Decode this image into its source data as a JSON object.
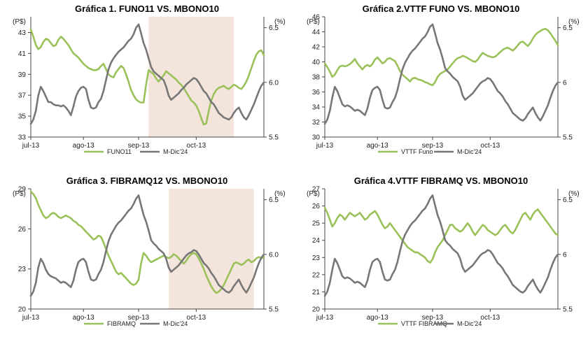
{
  "colors": {
    "primary": "#9BC15A",
    "secondary": "#777777",
    "shade": "#F3E5DC",
    "axis": "#444444"
  },
  "chart_data": [
    {
      "type": "line",
      "title": "Gráfica 1. FUNO11 VS. MBONO10",
      "left_unit": "(P$)",
      "right_unit": "(%)",
      "ylim_left": [
        33,
        44.5
      ],
      "ylim_right": [
        5.5,
        6.6
      ],
      "left_ticks": [
        33,
        35,
        37,
        39,
        41,
        43
      ],
      "right_ticks": [
        "5.5",
        "6.0",
        "6.5"
      ],
      "right_tick_values": [
        5.5,
        6.0,
        6.5
      ],
      "x_ticks": [
        "jul-13",
        "ago-13",
        "sep-13",
        "oct-13"
      ],
      "x_tick_positions": [
        0,
        21,
        43,
        66
      ],
      "n_points": 94,
      "shade_range": [
        47,
        81
      ],
      "series": [
        {
          "name": "FUNO11",
          "axis": "left",
          "values": [
            43.3,
            42.6,
            41.8,
            41.4,
            41.6,
            42.1,
            42.4,
            42.3,
            42.0,
            41.7,
            41.8,
            42.3,
            42.6,
            42.4,
            42.1,
            41.8,
            41.4,
            41.0,
            40.8,
            40.6,
            40.3,
            40.0,
            39.8,
            39.6,
            39.5,
            39.4,
            39.4,
            39.5,
            39.8,
            40.0,
            39.5,
            39.0,
            38.8,
            38.7,
            39.2,
            39.5,
            39.8,
            39.6,
            39.0,
            38.3,
            37.5,
            37.0,
            36.6,
            36.4,
            36.3,
            36.3,
            38.0,
            39.4,
            39.2,
            39.0,
            38.6,
            38.3,
            38.6,
            38.9,
            39.3,
            39.1,
            38.9,
            38.7,
            38.5,
            38.2,
            38.0,
            37.7,
            37.3,
            36.9,
            36.5,
            36.3,
            36.0,
            35.5,
            34.8,
            34.2,
            34.3,
            35.5,
            36.5,
            37.1,
            37.5,
            37.7,
            37.8,
            37.9,
            37.7,
            37.6,
            37.8,
            38.0,
            37.9,
            37.7,
            37.6,
            37.9,
            38.3,
            38.9,
            39.6,
            40.3,
            40.9,
            41.2,
            41.3,
            40.8
          ]
        },
        {
          "name": "M-Dic'24",
          "axis": "right",
          "values": [
            5.62,
            5.66,
            5.74,
            5.88,
            5.96,
            5.92,
            5.87,
            5.82,
            5.82,
            5.8,
            5.79,
            5.79,
            5.78,
            5.79,
            5.77,
            5.74,
            5.7,
            5.78,
            5.87,
            5.92,
            5.95,
            5.96,
            5.94,
            5.84,
            5.77,
            5.76,
            5.77,
            5.82,
            5.85,
            5.92,
            6.02,
            6.12,
            6.18,
            6.22,
            6.25,
            6.28,
            6.3,
            6.32,
            6.35,
            6.38,
            6.4,
            6.44,
            6.5,
            6.53,
            6.45,
            6.36,
            6.3,
            6.22,
            6.14,
            6.1,
            6.08,
            6.06,
            6.04,
            6.02,
            5.96,
            5.88,
            5.84,
            5.86,
            5.88,
            5.9,
            5.93,
            5.95,
            5.98,
            6.0,
            6.02,
            6.04,
            6.03,
            6.0,
            5.96,
            5.92,
            5.9,
            5.86,
            5.82,
            5.8,
            5.76,
            5.72,
            5.7,
            5.68,
            5.67,
            5.66,
            5.68,
            5.72,
            5.75,
            5.77,
            5.72,
            5.68,
            5.66,
            5.7,
            5.75,
            5.8,
            5.86,
            5.92,
            5.97,
            6.0
          ]
        }
      ]
    },
    {
      "type": "line",
      "title": "Gráfica 2.VTTF FUNO VS. MBONO10",
      "left_unit": "(P$)",
      "right_unit": "(%)",
      "ylim_left": [
        30,
        46
      ],
      "ylim_right": [
        5.5,
        6.6
      ],
      "left_ticks": [
        30,
        32,
        34,
        36,
        38,
        40,
        42,
        44,
        46
      ],
      "right_ticks": [
        "5.5",
        "6",
        "6.5"
      ],
      "right_tick_values": [
        5.5,
        6.0,
        6.5
      ],
      "x_ticks": [
        "jul-13",
        "ago-13",
        "sep-13",
        "oct-13"
      ],
      "x_tick_positions": [
        0,
        21,
        43,
        66
      ],
      "n_points": 94,
      "shade_range": null,
      "series": [
        {
          "name": "VTTF Funo",
          "axis": "left",
          "values": [
            39.8,
            39.3,
            38.7,
            38.0,
            38.3,
            38.9,
            39.4,
            39.5,
            39.4,
            39.5,
            39.7,
            40.0,
            40.4,
            39.8,
            39.4,
            39.0,
            39.4,
            39.6,
            39.4,
            39.7,
            40.3,
            40.6,
            40.2,
            39.8,
            40.0,
            40.4,
            40.5,
            40.3,
            40.1,
            39.5,
            38.8,
            38.3,
            38.0,
            37.7,
            37.4,
            37.8,
            37.9,
            37.7,
            37.6,
            37.5,
            37.3,
            37.2,
            37.0,
            36.9,
            37.3,
            38.0,
            38.4,
            38.6,
            38.8,
            39.0,
            39.4,
            39.8,
            40.2,
            40.5,
            40.6,
            40.8,
            40.7,
            40.5,
            40.3,
            40.1,
            40.0,
            40.3,
            40.8,
            41.2,
            41.0,
            40.8,
            40.7,
            40.6,
            40.7,
            41.0,
            41.3,
            41.6,
            41.8,
            41.9,
            41.7,
            41.5,
            41.8,
            42.2,
            42.6,
            42.7,
            42.4,
            42.1,
            42.5,
            43.1,
            43.6,
            43.9,
            44.1,
            44.3,
            44.4,
            44.2,
            43.8,
            43.3,
            42.8,
            42.2
          ]
        },
        {
          "name": "M-Dic'24",
          "axis": "right",
          "values": [
            5.62,
            5.66,
            5.74,
            5.86,
            5.96,
            5.92,
            5.86,
            5.8,
            5.78,
            5.79,
            5.78,
            5.76,
            5.74,
            5.75,
            5.74,
            5.72,
            5.7,
            5.76,
            5.86,
            5.93,
            5.95,
            5.96,
            5.93,
            5.84,
            5.77,
            5.76,
            5.77,
            5.82,
            5.86,
            5.93,
            6.03,
            6.12,
            6.18,
            6.22,
            6.26,
            6.29,
            6.31,
            6.34,
            6.37,
            6.4,
            6.42,
            6.46,
            6.51,
            6.53,
            6.45,
            6.36,
            6.3,
            6.22,
            6.13,
            6.1,
            6.08,
            6.05,
            6.03,
            6.01,
            5.96,
            5.88,
            5.84,
            5.86,
            5.88,
            5.9,
            5.93,
            5.96,
            5.99,
            6.01,
            6.02,
            6.04,
            6.03,
            6.0,
            5.96,
            5.92,
            5.9,
            5.87,
            5.83,
            5.8,
            5.76,
            5.72,
            5.7,
            5.68,
            5.66,
            5.65,
            5.67,
            5.71,
            5.74,
            5.77,
            5.72,
            5.68,
            5.65,
            5.69,
            5.74,
            5.79,
            5.86,
            5.92,
            5.97,
            6.0
          ]
        }
      ]
    },
    {
      "type": "line",
      "title": "Gráfica 3. FIBRAMQ12 VS. MBONO10",
      "left_unit": "(P$)",
      "right_unit": "(%)",
      "ylim_left": [
        20,
        29
      ],
      "ylim_right": [
        5.5,
        6.6
      ],
      "left_ticks": [
        20,
        23,
        26,
        29
      ],
      "right_ticks": [
        "5.5",
        "6.0",
        "6.5"
      ],
      "right_tick_values": [
        5.5,
        6.0,
        6.5
      ],
      "x_ticks": [
        "jul-13",
        "ago-13",
        "sep-13",
        "oct-13"
      ],
      "x_tick_positions": [
        0,
        21,
        43,
        66
      ],
      "n_points": 94,
      "shade_range": [
        55,
        89
      ],
      "series": [
        {
          "name": "FIBRAMQ",
          "axis": "left",
          "values": [
            28.8,
            28.6,
            28.3,
            27.8,
            27.4,
            27.0,
            26.8,
            26.9,
            27.1,
            27.2,
            27.1,
            26.9,
            26.8,
            26.9,
            27.0,
            26.9,
            26.8,
            26.6,
            26.5,
            26.3,
            26.2,
            26.0,
            25.8,
            25.6,
            25.4,
            25.2,
            25.3,
            25.5,
            25.4,
            25.0,
            24.5,
            24.0,
            23.6,
            23.2,
            22.8,
            22.6,
            22.7,
            22.5,
            22.3,
            22.1,
            21.9,
            21.8,
            21.9,
            22.2,
            23.4,
            24.2,
            24.0,
            23.7,
            23.5,
            23.6,
            23.7,
            23.8,
            23.9,
            24.0,
            23.9,
            23.8,
            23.9,
            24.1,
            24.0,
            23.8,
            23.6,
            23.4,
            23.6,
            23.9,
            24.1,
            24.2,
            24.1,
            23.8,
            23.4,
            23.0,
            22.5,
            22.1,
            21.7,
            21.4,
            21.2,
            21.3,
            21.5,
            21.8,
            22.2,
            22.6,
            23.0,
            23.4,
            23.5,
            23.4,
            23.3,
            23.4,
            23.6,
            23.7,
            23.5,
            23.6,
            23.8,
            23.9,
            23.8,
            23.9
          ]
        },
        {
          "name": "M-Dic'24",
          "axis": "right",
          "values": [
            5.62,
            5.66,
            5.74,
            5.88,
            5.96,
            5.92,
            5.86,
            5.82,
            5.8,
            5.79,
            5.78,
            5.76,
            5.74,
            5.75,
            5.74,
            5.72,
            5.7,
            5.76,
            5.86,
            5.93,
            5.95,
            5.96,
            5.93,
            5.84,
            5.77,
            5.76,
            5.77,
            5.82,
            5.86,
            5.93,
            6.03,
            6.12,
            6.18,
            6.22,
            6.26,
            6.29,
            6.31,
            6.34,
            6.37,
            6.4,
            6.42,
            6.46,
            6.51,
            6.54,
            6.45,
            6.36,
            6.3,
            6.22,
            6.13,
            6.1,
            6.08,
            6.05,
            6.03,
            6.01,
            5.96,
            5.88,
            5.84,
            5.86,
            5.88,
            5.9,
            5.93,
            5.96,
            5.99,
            6.01,
            6.02,
            6.04,
            6.03,
            6.0,
            5.96,
            5.92,
            5.9,
            5.87,
            5.83,
            5.8,
            5.76,
            5.72,
            5.7,
            5.68,
            5.66,
            5.65,
            5.67,
            5.71,
            5.74,
            5.77,
            5.72,
            5.68,
            5.65,
            5.69,
            5.74,
            5.79,
            5.86,
            5.92,
            5.97,
            6.0
          ]
        }
      ]
    },
    {
      "type": "line",
      "title": "Gráfica 4.VTTF FIBRAMQ VS. MBONO10",
      "left_unit": "(P$)",
      "right_unit": "(%)",
      "ylim_left": [
        20,
        27
      ],
      "ylim_right": [
        5.5,
        6.6
      ],
      "left_ticks": [
        20,
        21,
        22,
        23,
        24,
        25,
        26,
        27
      ],
      "right_ticks": [
        "5.5",
        "6",
        "6.5"
      ],
      "right_tick_values": [
        5.5,
        6.0,
        6.5
      ],
      "x_ticks": [
        "jul-13",
        "ago-13",
        "sep-13",
        "oct-13"
      ],
      "x_tick_positions": [
        0,
        21,
        43,
        66
      ],
      "n_points": 94,
      "shade_range": null,
      "series": [
        {
          "name": "VTTF FIBRAMQ",
          "axis": "left",
          "values": [
            25.9,
            25.6,
            25.2,
            24.8,
            25.0,
            25.3,
            25.5,
            25.4,
            25.2,
            25.4,
            25.6,
            25.5,
            25.4,
            25.5,
            25.6,
            25.4,
            25.2,
            25.3,
            25.5,
            25.6,
            25.7,
            25.5,
            25.2,
            24.9,
            24.7,
            24.8,
            25.0,
            24.8,
            24.6,
            24.4,
            24.2,
            24.0,
            23.8,
            23.6,
            23.5,
            23.4,
            23.3,
            23.3,
            23.2,
            23.1,
            23.0,
            22.8,
            22.7,
            22.9,
            23.3,
            23.6,
            23.8,
            24.0,
            24.3,
            24.6,
            24.9,
            24.9,
            24.7,
            24.6,
            24.5,
            24.6,
            24.8,
            25.0,
            24.8,
            24.5,
            24.3,
            24.5,
            24.7,
            24.9,
            24.8,
            24.6,
            24.5,
            24.4,
            24.3,
            24.4,
            24.6,
            24.8,
            24.9,
            24.7,
            24.5,
            24.4,
            24.6,
            24.9,
            25.2,
            25.5,
            25.6,
            25.4,
            25.2,
            25.5,
            25.7,
            25.8,
            25.6,
            25.4,
            25.2,
            25.0,
            24.8,
            24.6,
            24.4,
            24.3
          ]
        },
        {
          "name": "M-Dic'24",
          "axis": "right",
          "values": [
            5.62,
            5.66,
            5.74,
            5.86,
            5.96,
            5.92,
            5.86,
            5.8,
            5.78,
            5.79,
            5.78,
            5.76,
            5.74,
            5.75,
            5.74,
            5.72,
            5.7,
            5.76,
            5.86,
            5.93,
            5.95,
            5.96,
            5.93,
            5.84,
            5.77,
            5.76,
            5.77,
            5.82,
            5.86,
            5.93,
            6.03,
            6.12,
            6.18,
            6.22,
            6.26,
            6.29,
            6.31,
            6.34,
            6.37,
            6.4,
            6.42,
            6.46,
            6.51,
            6.54,
            6.45,
            6.36,
            6.3,
            6.22,
            6.13,
            6.1,
            6.08,
            6.05,
            6.03,
            6.01,
            5.96,
            5.88,
            5.84,
            5.86,
            5.88,
            5.9,
            5.93,
            5.96,
            5.99,
            6.01,
            6.02,
            6.04,
            6.03,
            6.0,
            5.96,
            5.92,
            5.9,
            5.87,
            5.83,
            5.8,
            5.76,
            5.72,
            5.7,
            5.68,
            5.66,
            5.65,
            5.67,
            5.71,
            5.74,
            5.77,
            5.72,
            5.68,
            5.65,
            5.69,
            5.74,
            5.79,
            5.86,
            5.92,
            5.97,
            6.0
          ]
        }
      ]
    }
  ]
}
